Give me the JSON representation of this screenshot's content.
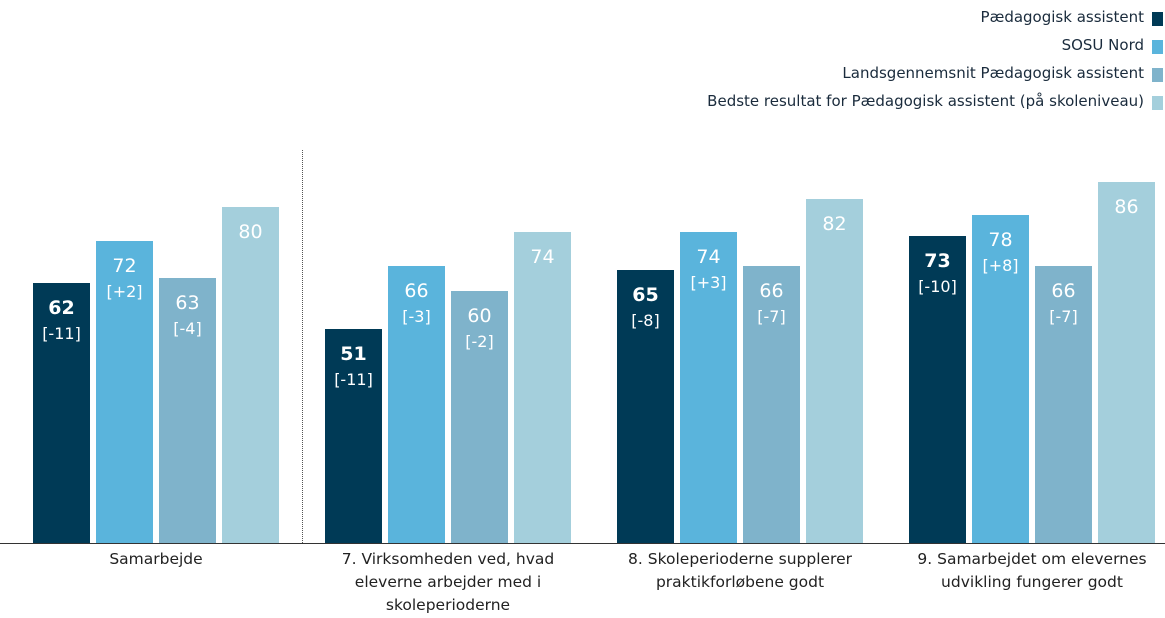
{
  "chart_data": {
    "type": "bar",
    "categories": [
      "Samarbejde",
      "7. Virksomheden ved, hvad eleverne arbejder med i skoleperioderne",
      "8. Skoleperioderne supplerer praktikforløbene godt",
      "9. Samarbejdet om elevernes udvikling fungerer godt"
    ],
    "series": [
      {
        "name": "Pædagogisk assistent",
        "color": "#003a56",
        "values": [
          62,
          51,
          65,
          73
        ],
        "deltas": [
          "[-11]",
          "[-11]",
          "[-8]",
          "[-10]"
        ]
      },
      {
        "name": "SOSU Nord",
        "color": "#5ab4dc",
        "values": [
          72,
          66,
          74,
          78
        ],
        "deltas": [
          "[+2]",
          "[-3]",
          "[+3]",
          "[+8]"
        ]
      },
      {
        "name": "Landsgennemsnit Pædagogisk assistent",
        "color": "#7fb3cb",
        "values": [
          63,
          60,
          66,
          66
        ],
        "deltas": [
          "[-4]",
          "[-2]",
          "[-7]",
          "[-7]"
        ]
      },
      {
        "name": "Bedste resultat for Pædagogisk assistent (på skoleniveau)",
        "color": "#a4cfdc",
        "values": [
          80,
          74,
          82,
          86
        ]
      }
    ],
    "ylim": [
      0,
      100
    ],
    "legend": "top-right"
  }
}
